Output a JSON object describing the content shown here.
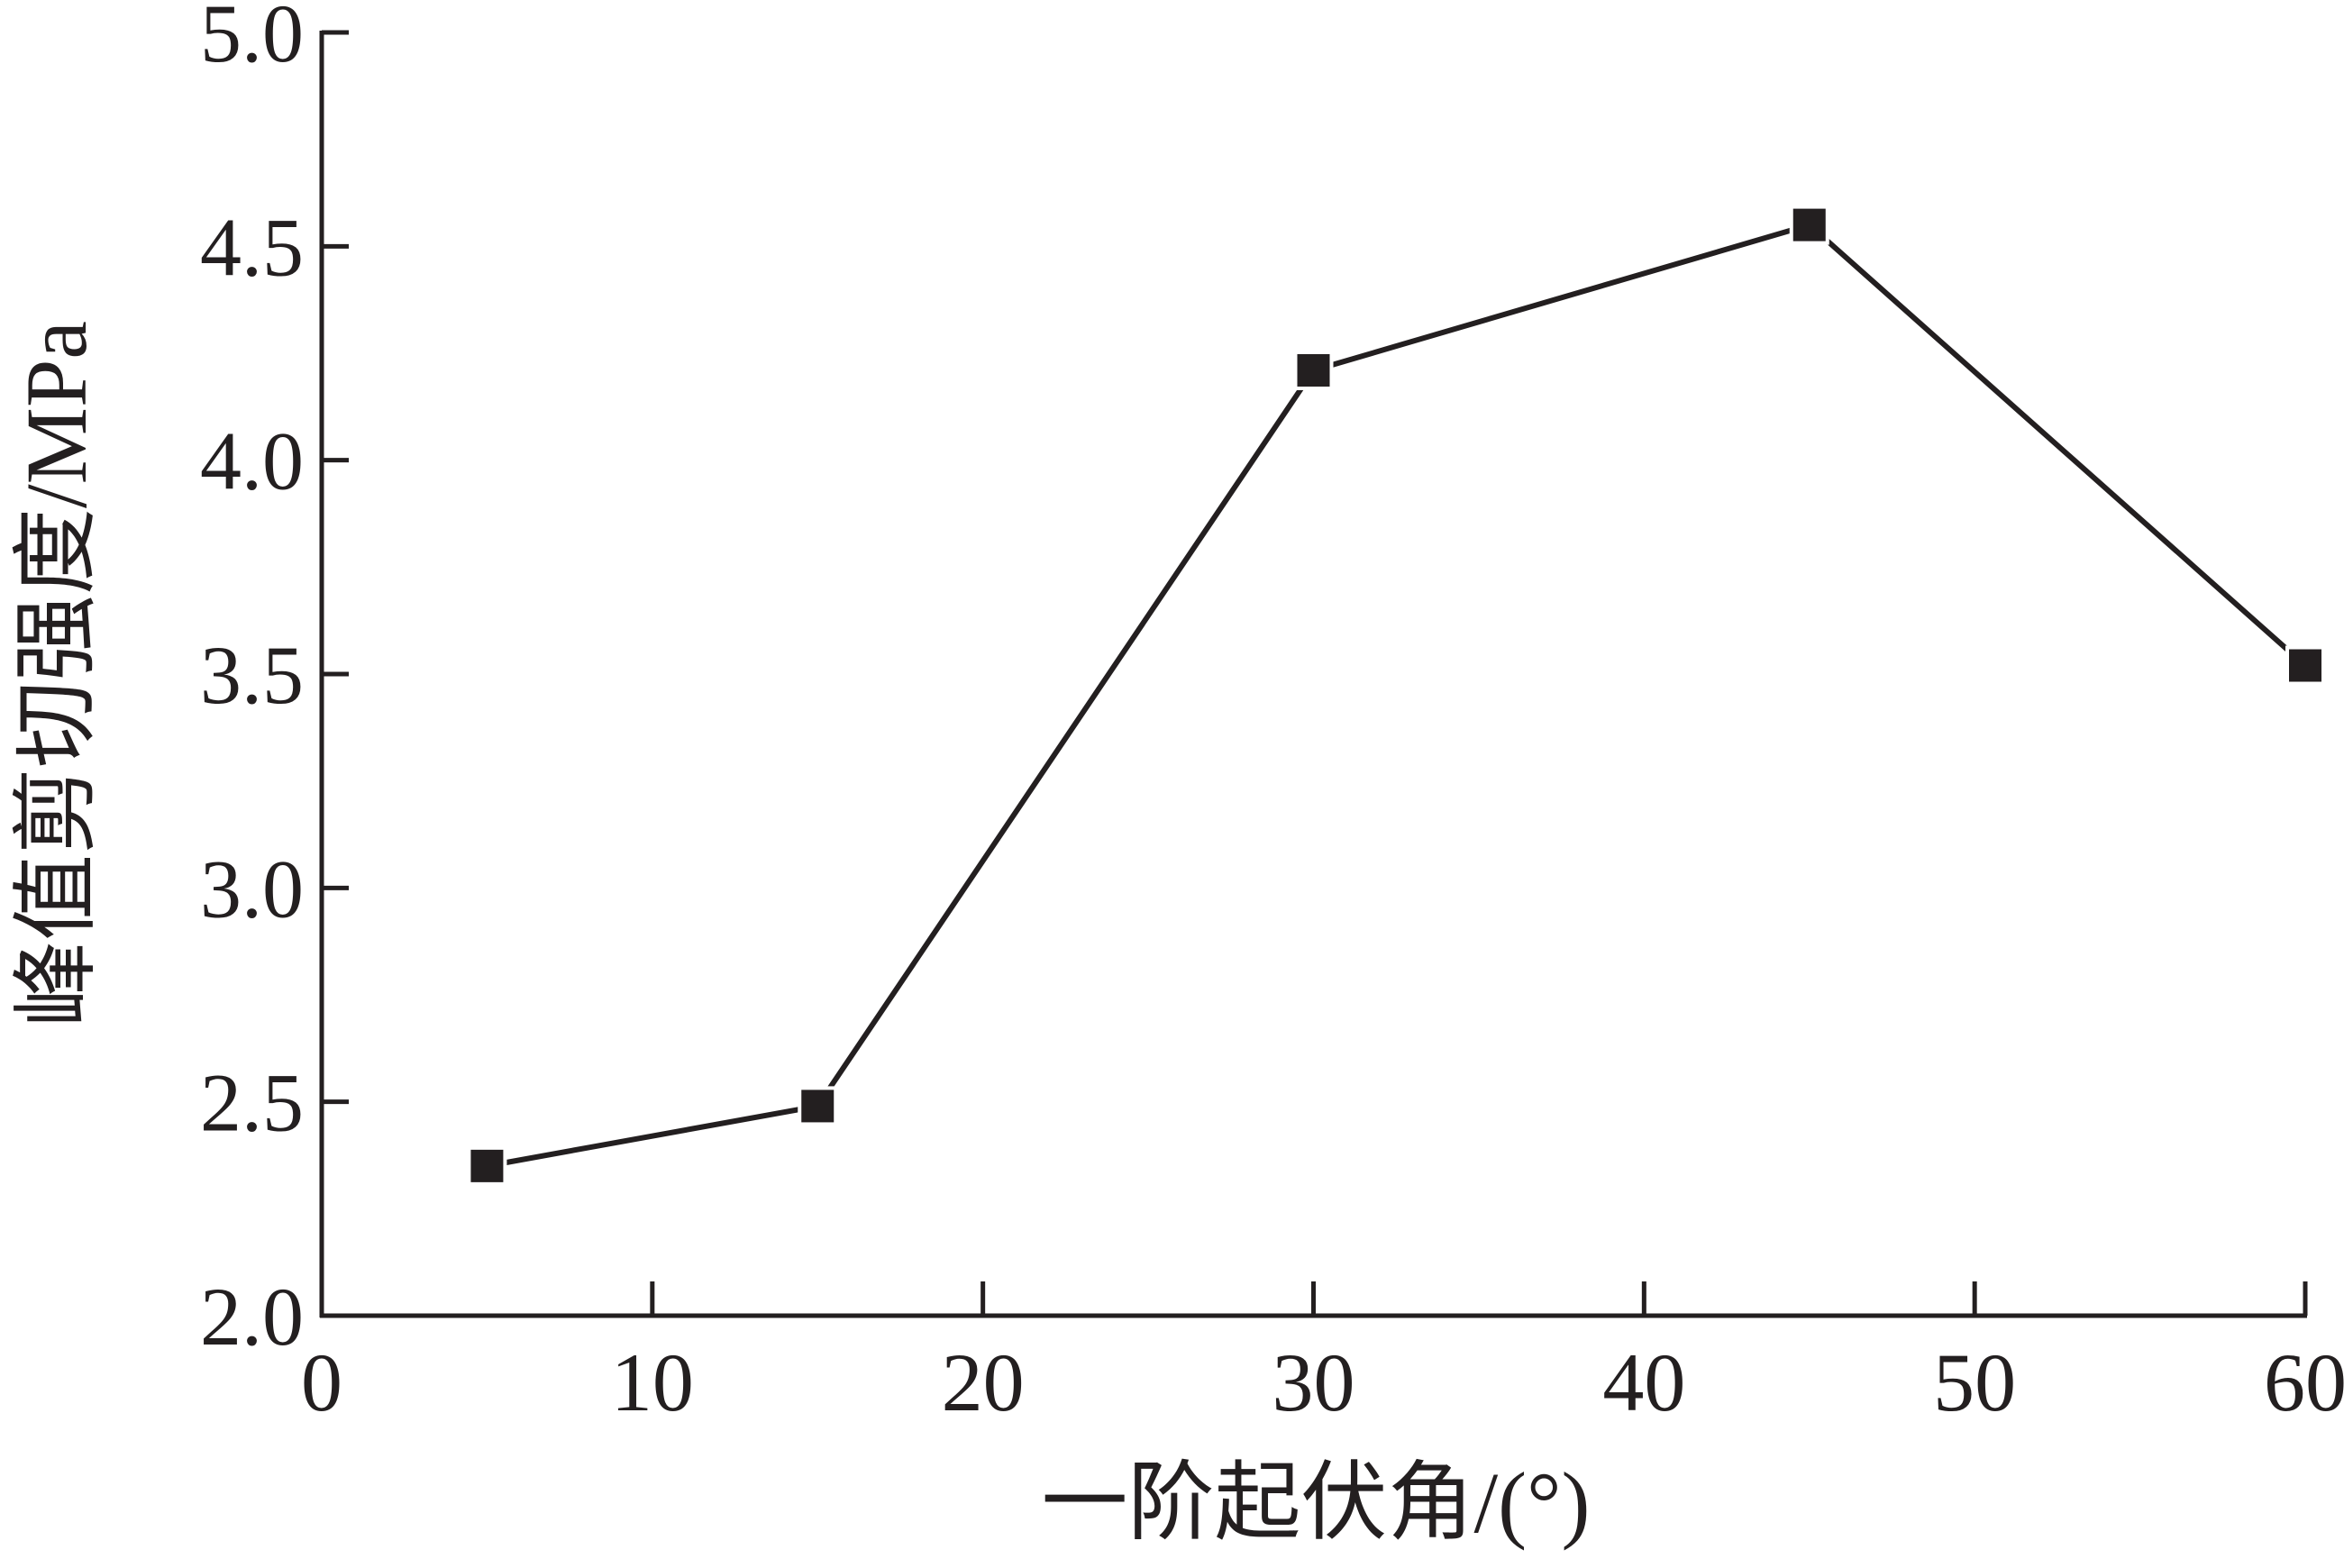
{
  "chart_data": {
    "type": "line",
    "x_label": "一阶起伏角/(°)",
    "y_label": "峰值剪切强度/MPa",
    "x": [
      5,
      15,
      30,
      45,
      60
    ],
    "series": [
      {
        "name": "峰值剪切强度",
        "color": "#231f20",
        "values": [
          2.35,
          2.49,
          4.21,
          4.55,
          3.52
        ]
      }
    ],
    "xlim": [
      0,
      60
    ],
    "xticks": [
      0,
      10,
      20,
      30,
      40,
      50,
      60
    ],
    "ylim": [
      2,
      5
    ],
    "yticks": [
      {
        "value": 2,
        "label": "2.0"
      },
      {
        "value": 2.5,
        "label": "2.5"
      },
      {
        "value": 3,
        "label": "3.0"
      },
      {
        "value": 3.5,
        "label": "3.5"
      },
      {
        "value": 4,
        "label": "4.0"
      },
      {
        "value": 4.5,
        "label": "4.5"
      },
      {
        "value": 5,
        "label": "5.0"
      }
    ],
    "grid": false,
    "marker": "square"
  }
}
